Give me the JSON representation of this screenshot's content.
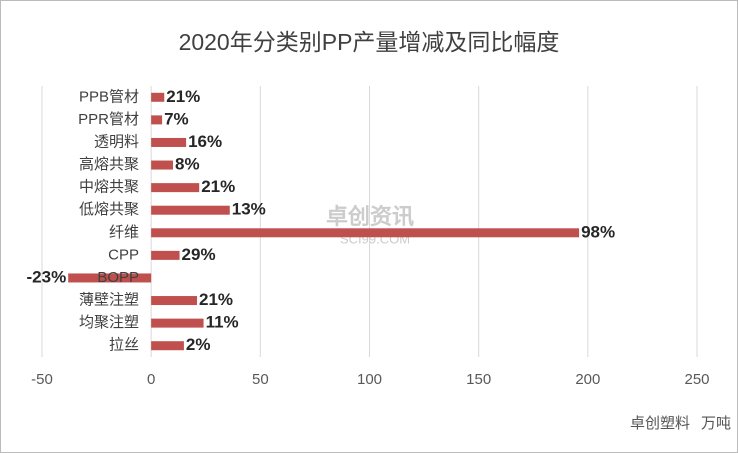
{
  "chart_data": {
    "type": "bar",
    "orientation": "horizontal",
    "title": "2020年分类别PP产量增减及同比幅度",
    "categories": [
      "PPB管材",
      "PPR管材",
      "透明料",
      "高熔共聚",
      "中熔共聚",
      "低熔共聚",
      "纤维",
      "CPP",
      "BOPP",
      "薄壁注塑",
      "均聚注塑",
      "拉丝"
    ],
    "values": [
      6,
      5,
      16,
      10,
      22,
      36,
      196,
      13,
      -38,
      21,
      24,
      15
    ],
    "change_labels": [
      "21%",
      "7%",
      "16%",
      "8%",
      "21%",
      "13%",
      "98%",
      "29%",
      "-23%",
      "21%",
      "11%",
      "2%"
    ],
    "color": "#c0504d",
    "xlim": [
      -50,
      250
    ],
    "xticks": [
      -50,
      0,
      50,
      100,
      150,
      200,
      250
    ],
    "grid": true,
    "watermark": "卓创资讯",
    "watermark_sub": "SCI99.COM",
    "source": "卓创塑料",
    "unit": "万吨"
  }
}
